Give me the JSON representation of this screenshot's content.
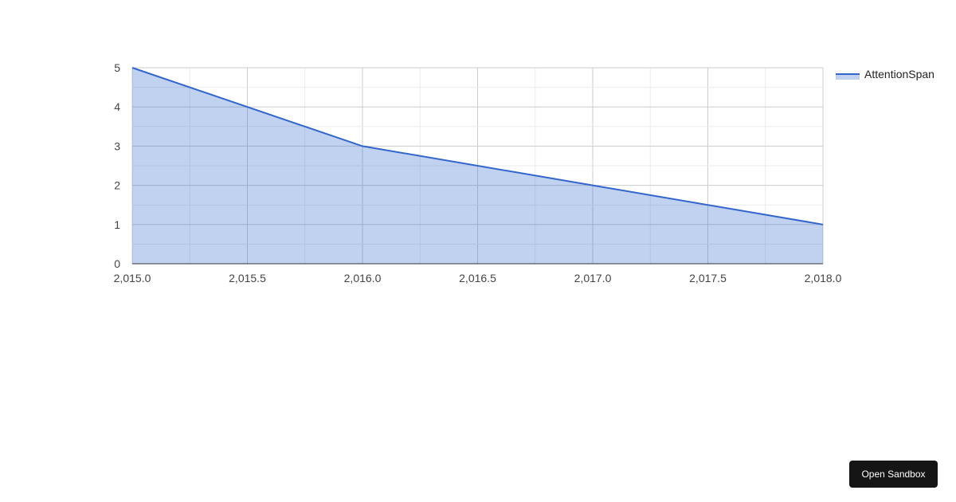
{
  "chart_data": {
    "type": "area",
    "x": [
      2015,
      2016,
      2017,
      2018
    ],
    "series": [
      {
        "name": "AttentionSpan",
        "values": [
          5,
          3,
          2,
          1
        ]
      }
    ],
    "xlim": [
      2015,
      2018
    ],
    "ylim": [
      0,
      5
    ],
    "xticks": [
      "2,015.0",
      "2,015.5",
      "2,016.0",
      "2,016.5",
      "2,017.0",
      "2,017.5",
      "2,018.0"
    ],
    "yticks": [
      "0",
      "1",
      "2",
      "3",
      "4",
      "5"
    ],
    "grid": true,
    "legend": "right",
    "colors": {
      "line": "#3366cc",
      "fill": "#c2d1ef"
    }
  },
  "ui": {
    "open_sandbox": "Open Sandbox"
  }
}
